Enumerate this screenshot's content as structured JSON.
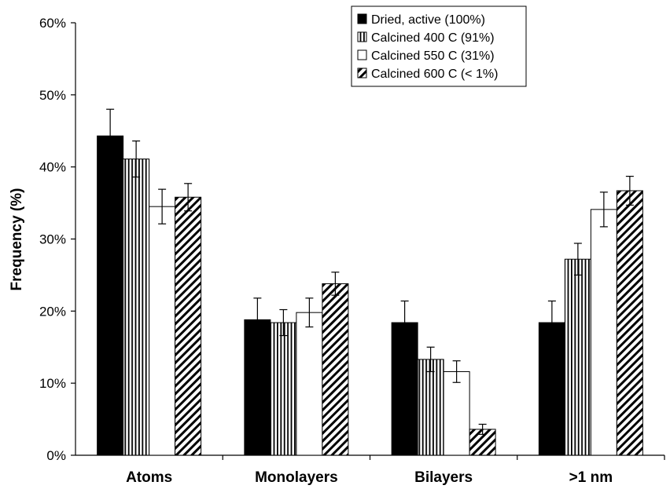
{
  "chart_data": {
    "type": "bar",
    "title": "",
    "xlabel": "",
    "ylabel": "Frequency (%)",
    "ylim": [
      0,
      60
    ],
    "yticks": [
      "0%",
      "10%",
      "20%",
      "30%",
      "40%",
      "50%",
      "60%"
    ],
    "ytick_values": [
      0,
      10,
      20,
      30,
      40,
      50,
      60
    ],
    "categories": [
      "Atoms",
      "Monolayers",
      "Bilayers",
      ">1 nm"
    ],
    "series": [
      {
        "name": "Dried, active (100%)",
        "fill": "solid",
        "color": "#000000",
        "values": [
          44.3,
          18.8,
          18.4,
          18.4
        ],
        "errors": [
          3.7,
          3.0,
          3.0,
          3.0
        ]
      },
      {
        "name": "Calcined 400 C (91%)",
        "fill": "vertical-lines",
        "color": "#000000",
        "values": [
          41.1,
          18.4,
          13.3,
          27.2
        ],
        "errors": [
          2.5,
          1.8,
          1.7,
          2.2
        ]
      },
      {
        "name": "Calcined 550 C (31%)",
        "fill": "white",
        "color": "#000000",
        "values": [
          34.5,
          19.8,
          11.6,
          34.1
        ],
        "errors": [
          2.4,
          2.0,
          1.5,
          2.4
        ]
      },
      {
        "name": "Calcined 600 C (< 1%)",
        "fill": "diagonal-lines",
        "color": "#000000",
        "values": [
          35.8,
          23.8,
          3.6,
          36.7
        ],
        "errors": [
          1.9,
          1.6,
          0.7,
          2.0
        ]
      }
    ],
    "legend_position": "top-right",
    "grid": false
  }
}
